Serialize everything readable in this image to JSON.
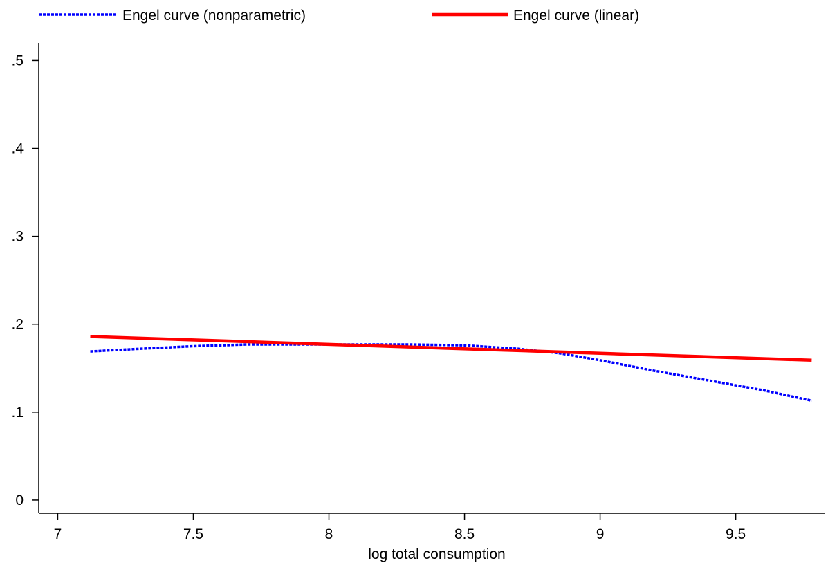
{
  "chart_data": {
    "type": "line",
    "title": "",
    "xlabel": "log total consumption",
    "ylabel": "",
    "xlim": [
      6.93,
      9.83
    ],
    "ylim": [
      -0.015,
      0.52
    ],
    "xticks": [
      7,
      7.5,
      8,
      8.5,
      9,
      9.5
    ],
    "xtick_labels": [
      "7",
      "7.5",
      "8",
      "8.5",
      "9",
      "9.5"
    ],
    "yticks": [
      0,
      0.1,
      0.2,
      0.3,
      0.4,
      0.5
    ],
    "ytick_labels": [
      "0",
      ".1",
      ".2",
      ".3",
      ".4",
      ".5"
    ],
    "grid": false,
    "legend_position": "top",
    "series": [
      {
        "name": "Engel curve (nonparametric)",
        "color": "#0000ff",
        "style": "dashed",
        "x": [
          7.12,
          7.3,
          7.5,
          7.7,
          7.9,
          8.1,
          8.3,
          8.5,
          8.7,
          8.85,
          9.0,
          9.2,
          9.4,
          9.6,
          9.78
        ],
        "y": [
          0.169,
          0.172,
          0.175,
          0.177,
          0.177,
          0.177,
          0.177,
          0.176,
          0.172,
          0.167,
          0.159,
          0.147,
          0.136,
          0.125,
          0.113
        ]
      },
      {
        "name": "Engel curve (linear)",
        "color": "#ff0000",
        "style": "solid",
        "x": [
          7.12,
          9.78
        ],
        "y": [
          0.186,
          0.159
        ]
      }
    ]
  }
}
